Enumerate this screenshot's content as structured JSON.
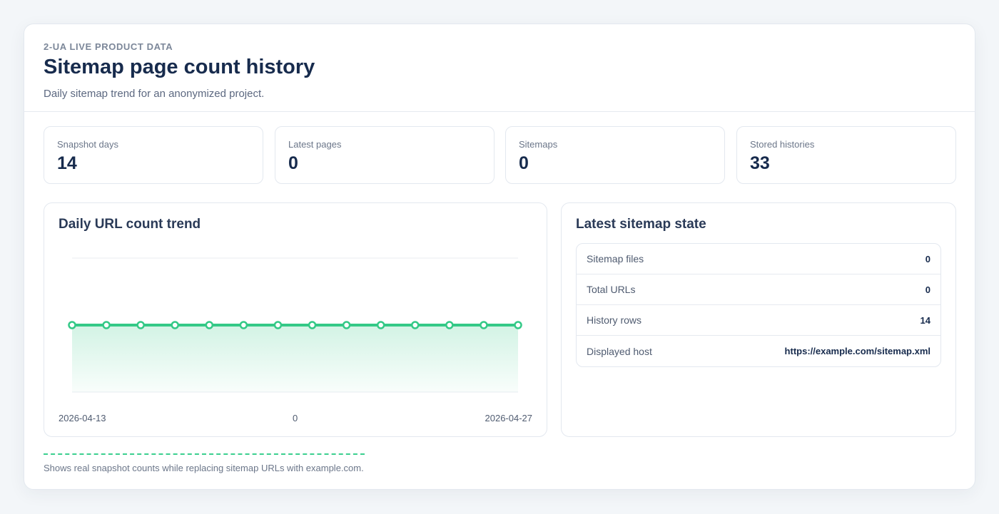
{
  "header": {
    "eyebrow": "2-UA LIVE PRODUCT DATA",
    "title": "Sitemap page count history",
    "subtitle": "Daily sitemap trend for an anonymized project."
  },
  "stats": [
    {
      "label": "Snapshot days",
      "value": "14"
    },
    {
      "label": "Latest pages",
      "value": "0"
    },
    {
      "label": "Sitemaps",
      "value": "0"
    },
    {
      "label": "Stored histories",
      "value": "33"
    }
  ],
  "trend": {
    "title": "Daily URL count trend",
    "start_label": "2026-04-13",
    "mid_label": "0",
    "end_label": "2026-04-27"
  },
  "chart_data": {
    "type": "area",
    "title": "Daily URL count trend",
    "x_start": "2026-04-13",
    "x_end": "2026-04-27",
    "values": [
      0,
      0,
      0,
      0,
      0,
      0,
      0,
      0,
      0,
      0,
      0,
      0,
      0,
      0
    ],
    "line_color": "#34c987",
    "fill_color": "#34c987",
    "grid": true
  },
  "state": {
    "title": "Latest sitemap state",
    "rows": [
      {
        "key": "Sitemap files",
        "value": "0"
      },
      {
        "key": "Total URLs",
        "value": "0"
      },
      {
        "key": "History rows",
        "value": "14"
      },
      {
        "key": "Displayed host",
        "value": "https://example.com/sitemap.xml"
      }
    ]
  },
  "footer": {
    "note": "Shows real snapshot counts while replacing sitemap URLs with example.com."
  }
}
